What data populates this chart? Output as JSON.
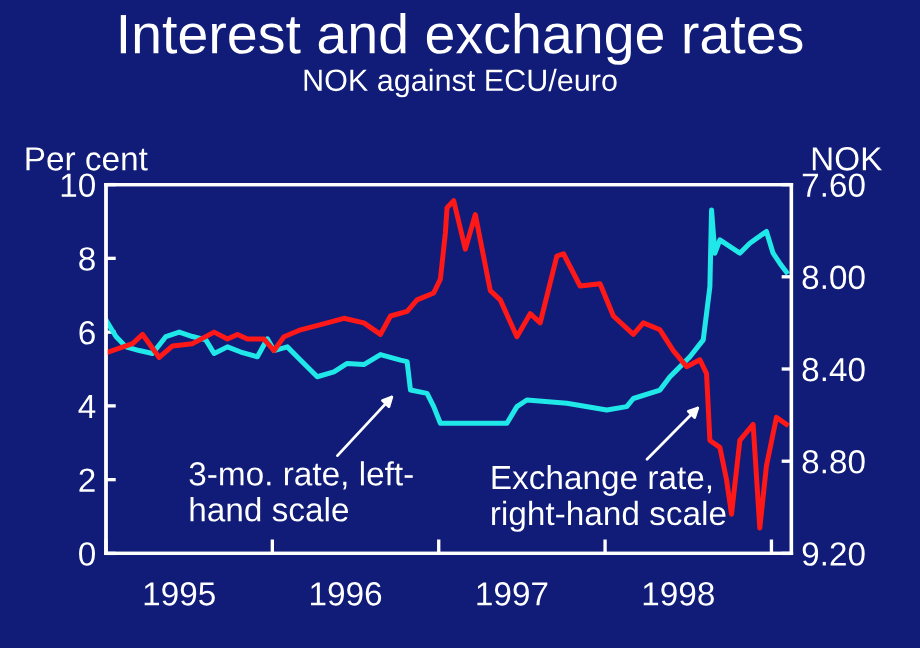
{
  "chart_data": {
    "type": "line",
    "title": "Interest and exchange rates",
    "subtitle": "NOK against ECU/euro",
    "ylabel": "Per cent",
    "y2label": "NOK",
    "xlim": [
      1995,
      1999.12
    ],
    "ylim": [
      0,
      10
    ],
    "y2lim": [
      9.2,
      7.6
    ],
    "xticks": [
      {
        "value": 1995,
        "label": null
      },
      {
        "value": 1995.44,
        "label": "1995"
      },
      {
        "value": 1996,
        "label": null
      },
      {
        "value": 1996.44,
        "label": "1996"
      },
      {
        "value": 1997,
        "label": null
      },
      {
        "value": 1997.44,
        "label": "1997"
      },
      {
        "value": 1998,
        "label": null
      },
      {
        "value": 1998.44,
        "label": "1998"
      },
      {
        "value": 1999,
        "label": null
      }
    ],
    "yticks": [
      0,
      2,
      4,
      6,
      8,
      10
    ],
    "y2ticks": [
      {
        "value": 7.6,
        "label": "7.60"
      },
      {
        "value": 8.0,
        "label": "8.00"
      },
      {
        "value": 8.4,
        "label": "8.40"
      },
      {
        "value": 8.8,
        "label": "8.80"
      },
      {
        "value": 9.2,
        "label": "9.20"
      }
    ],
    "grid": false,
    "legend": false,
    "marker": "none",
    "line_style": "solid",
    "series": [
      {
        "color": "#20e8e8",
        "x": [
          1995.0,
          1995.06,
          1995.12,
          1995.2,
          1995.28,
          1995.36,
          1995.44,
          1995.52,
          1995.6,
          1995.65,
          1995.73,
          1995.81,
          1995.91,
          1995.97,
          1996.01,
          1996.09,
          1996.17,
          1996.27,
          1996.37,
          1996.45,
          1996.55,
          1996.65,
          1996.77,
          1996.81,
          1996.83,
          1996.93,
          1996.97,
          1997.01,
          1997.41,
          1997.47,
          1997.53,
          1997.77,
          1998.01,
          1998.13,
          1998.17,
          1998.33,
          1998.39,
          1998.43,
          1998.51,
          1998.59,
          1998.63,
          1998.64,
          1998.66,
          1998.69,
          1998.81,
          1998.87,
          1998.97,
          1999.01,
          1999.05,
          1999.09
        ],
        "values": [
          6.33,
          5.88,
          5.6,
          5.5,
          5.42,
          5.88,
          6.0,
          5.88,
          5.79,
          5.42,
          5.6,
          5.46,
          5.33,
          5.82,
          5.5,
          5.6,
          5.24,
          4.79,
          4.92,
          5.15,
          5.12,
          5.39,
          5.24,
          5.2,
          4.43,
          4.34,
          3.98,
          3.53,
          3.53,
          3.98,
          4.16,
          4.07,
          3.89,
          3.98,
          4.2,
          4.43,
          4.79,
          4.97,
          5.33,
          5.79,
          7.23,
          9.31,
          8.14,
          8.5,
          8.14,
          8.41,
          8.73,
          8.14,
          7.87,
          7.63
        ]
      },
      {
        "color": "#ff1818",
        "axis": "y2",
        "x": [
          1995.0,
          1995.16,
          1995.22,
          1995.32,
          1995.4,
          1995.52,
          1995.65,
          1995.73,
          1995.79,
          1995.85,
          1995.95,
          1996.01,
          1996.07,
          1996.17,
          1996.33,
          1996.43,
          1996.55,
          1996.65,
          1996.71,
          1996.81,
          1996.87,
          1996.97,
          1997.01,
          1997.04,
          1997.05,
          1997.09,
          1997.16,
          1997.22,
          1997.31,
          1997.37,
          1997.47,
          1997.55,
          1997.61,
          1997.71,
          1997.75,
          1997.85,
          1997.97,
          1998.05,
          1998.17,
          1998.23,
          1998.33,
          1998.41,
          1998.49,
          1998.57,
          1998.61,
          1998.63,
          1998.69,
          1998.73,
          1998.76,
          1998.81,
          1998.89,
          1998.93,
          1998.97,
          1999.03,
          1999.09
        ],
        "values": [
          8.33,
          8.29,
          8.25,
          8.35,
          8.3,
          8.29,
          8.24,
          8.27,
          8.25,
          8.27,
          8.27,
          8.32,
          8.26,
          8.23,
          8.2,
          8.18,
          8.2,
          8.25,
          8.17,
          8.15,
          8.1,
          8.07,
          8.01,
          7.81,
          7.7,
          7.67,
          7.88,
          7.73,
          8.06,
          8.1,
          8.26,
          8.16,
          8.2,
          7.91,
          7.9,
          8.04,
          8.03,
          8.17,
          8.25,
          8.2,
          8.23,
          8.32,
          8.39,
          8.36,
          8.42,
          8.71,
          8.74,
          8.88,
          9.03,
          8.71,
          8.64,
          9.09,
          8.82,
          8.61,
          8.64
        ]
      }
    ],
    "annotations": [
      "3-mo. rate, left-\nhand scale",
      {
        "text": "Exchange rate,\nright-hand scale",
        "x": 1998.57,
        "y": 4.0
      }
    ]
  }
}
